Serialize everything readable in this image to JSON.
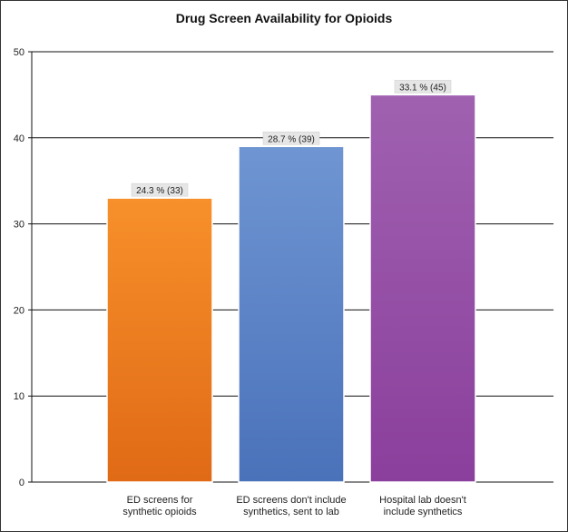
{
  "chart_data": {
    "type": "bar",
    "title": "Drug Screen Availability for Opioids",
    "xlabel": "",
    "ylabel": "",
    "ylim": [
      0,
      50
    ],
    "yticks": [
      0,
      10,
      20,
      30,
      40,
      50
    ],
    "grid": true,
    "legend": "none",
    "categories": [
      [
        "ED screens for",
        "synthetic opioids"
      ],
      [
        "ED screens don't include",
        "synthetics, sent to lab"
      ],
      [
        "Hospital lab doesn't",
        "include synthetics"
      ]
    ],
    "values": [
      33,
      39,
      45
    ],
    "data_labels": [
      "24.3 % (33)",
      "28.7 % (39)",
      "33.1 % (45)"
    ],
    "colors": [
      [
        "#f7902a",
        "#e06a16"
      ],
      [
        "#6f95d2",
        "#4a72ba"
      ],
      [
        "#a061b0",
        "#8a3f9c"
      ]
    ]
  }
}
